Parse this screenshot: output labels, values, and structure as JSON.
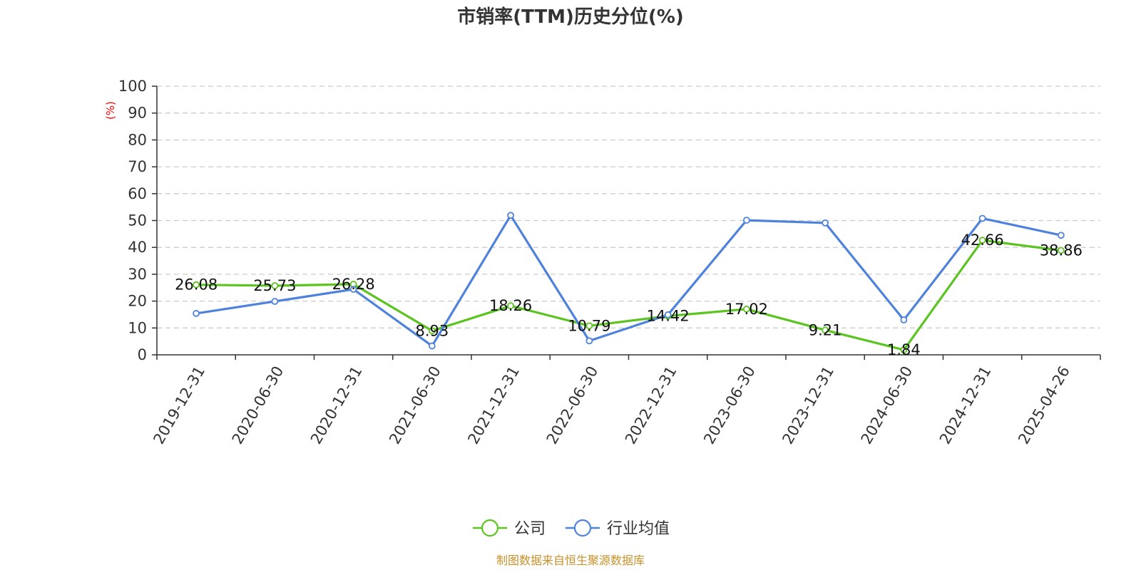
{
  "chart_data": {
    "type": "line",
    "title": "市销率(TTM)历史分位(%)",
    "ylabel": "(%)",
    "xlabel": "",
    "ylim": [
      0,
      100
    ],
    "yticks": [
      0,
      10,
      20,
      30,
      40,
      50,
      60,
      70,
      80,
      90,
      100
    ],
    "grid": true,
    "legend_position": "bottom-center",
    "categories": [
      "2019-12-31",
      "2020-06-30",
      "2020-12-31",
      "2021-06-30",
      "2021-12-31",
      "2022-06-30",
      "2022-12-31",
      "2023-06-30",
      "2023-12-31",
      "2024-06-30",
      "2024-12-31",
      "2025-04-26"
    ],
    "series": [
      {
        "name": "公司",
        "color": "#5cc421",
        "values": [
          26.08,
          25.73,
          26.28,
          8.93,
          18.26,
          10.79,
          14.42,
          17.02,
          9.21,
          1.84,
          42.66,
          38.86
        ],
        "labels": [
          "26.08",
          "25.73",
          "26.28",
          "8.93",
          "18.26",
          "10.79",
          "14.42",
          "17.02",
          "9.21",
          "1.84",
          "42.66",
          "38.86"
        ]
      },
      {
        "name": "行业均值",
        "color": "#4f82dc",
        "values": [
          15.4,
          19.9,
          24.4,
          3.3,
          51.9,
          5.2,
          14.9,
          50.1,
          49.1,
          13.0,
          50.8,
          44.5
        ]
      }
    ]
  },
  "source": "制图数据来自恒生聚源数据库"
}
